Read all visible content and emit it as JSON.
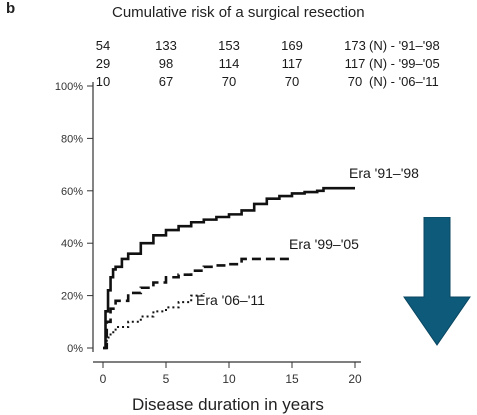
{
  "panel_label": "b",
  "arrow_color": "#0d5a7a",
  "chart_data": {
    "type": "line",
    "title": "Cumulative risk of a surgical resection",
    "xlabel": "Disease duration in years",
    "ylabel": "",
    "xlim": [
      0,
      20
    ],
    "ylim": [
      0,
      100
    ],
    "x_ticks": [
      0,
      5,
      10,
      15,
      20
    ],
    "y_ticks": [
      0,
      20,
      40,
      60,
      80,
      100
    ],
    "y_tick_labels": [
      "0%",
      "20%",
      "40%",
      "60%",
      "80%",
      "100%"
    ],
    "at_risk_table": {
      "times": [
        0,
        5,
        10,
        15,
        20
      ],
      "rows": [
        {
          "values": [
            "54",
            "133",
            "153",
            "169",
            "173"
          ],
          "label": "(N) - '91–'98"
        },
        {
          "values": [
            "29",
            "98",
            "114",
            "117",
            "117"
          ],
          "label": "(N) - '99–'05"
        },
        {
          "values": [
            "10",
            "67",
            "70",
            "70",
            "70"
          ],
          "label": "(N) - '06–'11"
        }
      ]
    },
    "series": [
      {
        "name": "Era '91–'98",
        "style": "solid",
        "x": [
          0,
          0.2,
          0.4,
          0.6,
          0.8,
          1,
          1.5,
          2,
          3,
          4,
          5,
          6,
          7,
          8,
          9,
          10,
          11,
          12,
          13,
          14,
          15,
          16,
          17,
          17.5,
          20
        ],
        "y": [
          0,
          14,
          22,
          27,
          30,
          31,
          34,
          36,
          40,
          43,
          45,
          46.5,
          48,
          49,
          50,
          51,
          52.5,
          55,
          57,
          58,
          59,
          59.5,
          60,
          61,
          61
        ]
      },
      {
        "name": "Era '99–'05",
        "style": "dashed",
        "x": [
          0,
          0.3,
          0.6,
          1,
          2,
          3,
          4,
          5,
          6,
          7,
          8,
          9,
          10,
          11,
          12,
          15
        ],
        "y": [
          0,
          10,
          15,
          18,
          21,
          23,
          25,
          27,
          28,
          29.5,
          31,
          31.5,
          32,
          34,
          34,
          34
        ]
      },
      {
        "name": "Era '06–'11",
        "style": "dotted",
        "x": [
          0,
          0.3,
          0.6,
          1,
          2,
          3,
          4,
          5,
          6,
          7,
          8
        ],
        "y": [
          0,
          4,
          6,
          8,
          10,
          12,
          14,
          15.5,
          17.5,
          20,
          21
        ]
      }
    ]
  }
}
